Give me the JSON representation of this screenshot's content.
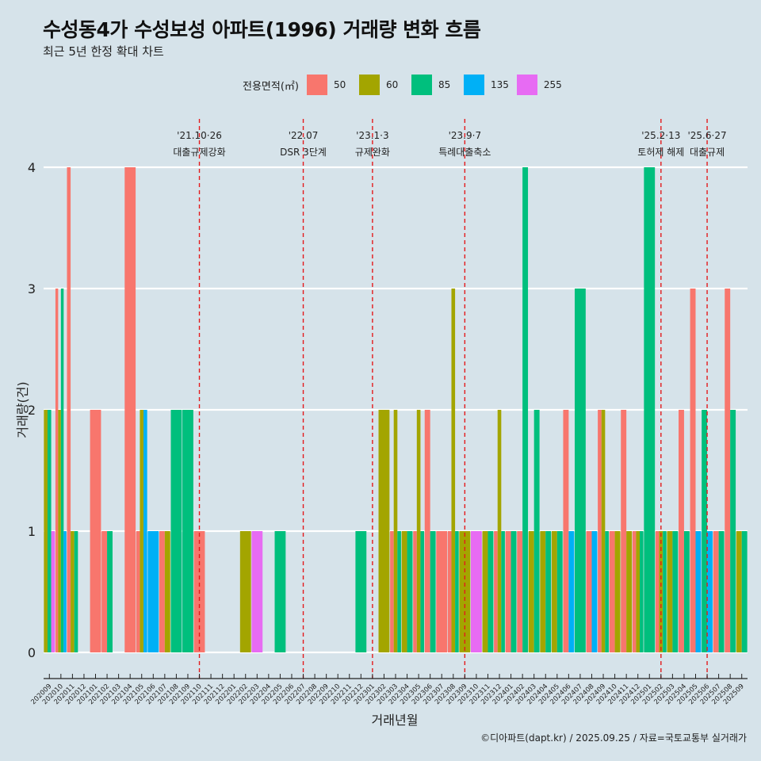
{
  "title": "수성동4가 수성보성 아파트(1996) 거래량 변화 흐름",
  "subtitle": "최근 5년 한정 확대 차트",
  "legend_title": "전용면적(㎡)",
  "caption": "©디아파트(dapt.kr) / 2025.09.25 / 자료=국토교통부 실거래가",
  "chart_data": {
    "type": "bar",
    "title": "수성동4가 수성보성 아파트(1996) 거래량 변화 흐름",
    "xlabel": "거래년월",
    "ylabel": "거래량(건)",
    "ylim": [
      0,
      4
    ],
    "yticks": [
      0,
      1,
      2,
      3,
      4
    ],
    "grid": true,
    "legend_position": "top",
    "categories": [
      "202009",
      "202010",
      "202011",
      "202012",
      "202101",
      "202102",
      "202103",
      "202104",
      "202105",
      "202106",
      "202107",
      "202108",
      "202109",
      "202110",
      "202111",
      "202112",
      "202201",
      "202202",
      "202203",
      "202204",
      "202205",
      "202206",
      "202207",
      "202208",
      "202209",
      "202210",
      "202211",
      "202212",
      "202301",
      "202302",
      "202303",
      "202304",
      "202305",
      "202306",
      "202307",
      "202308",
      "202309",
      "202310",
      "202311",
      "202312",
      "202401",
      "202402",
      "202403",
      "202404",
      "202405",
      "202406",
      "202407",
      "202408",
      "202409",
      "202410",
      "202411",
      "202412",
      "202501",
      "202502",
      "202503",
      "202504",
      "202505",
      "202506",
      "202507",
      "202508",
      "202509"
    ],
    "series": [
      {
        "name": "50",
        "color": "#f8766d",
        "values": [
          0,
          3,
          4,
          0,
          2,
          1,
          0,
          4,
          1,
          0,
          1,
          0,
          0,
          1,
          0,
          0,
          0,
          0,
          0,
          0,
          0,
          0,
          0,
          0,
          0,
          0,
          0,
          0,
          0,
          0,
          1,
          0,
          1,
          2,
          1,
          1,
          0,
          0,
          0,
          1,
          1,
          1,
          0,
          0,
          0,
          2,
          0,
          1,
          2,
          1,
          2,
          1,
          0,
          1,
          0,
          2,
          3,
          0,
          1,
          3,
          0
        ]
      },
      {
        "name": "60",
        "color": "#a3a500",
        "values": [
          2,
          2,
          1,
          0,
          0,
          0,
          0,
          0,
          2,
          0,
          1,
          0,
          0,
          0,
          0,
          0,
          0,
          1,
          0,
          0,
          0,
          0,
          0,
          0,
          0,
          0,
          0,
          0,
          0,
          2,
          2,
          1,
          2,
          0,
          0,
          3,
          1,
          0,
          1,
          2,
          0,
          0,
          1,
          1,
          1,
          0,
          0,
          0,
          2,
          1,
          1,
          1,
          0,
          1,
          1,
          0,
          0,
          0,
          0,
          0,
          1
        ]
      },
      {
        "name": "85",
        "color": "#00bf7d",
        "values": [
          2,
          3,
          1,
          0,
          0,
          1,
          0,
          0,
          0,
          0,
          0,
          2,
          2,
          0,
          0,
          0,
          0,
          0,
          0,
          0,
          1,
          0,
          0,
          0,
          0,
          0,
          0,
          1,
          0,
          0,
          1,
          1,
          1,
          1,
          0,
          1,
          0,
          0,
          1,
          1,
          1,
          4,
          2,
          1,
          1,
          0,
          3,
          0,
          1,
          0,
          0,
          1,
          4,
          1,
          1,
          1,
          0,
          2,
          1,
          2,
          1
        ]
      },
      {
        "name": "135",
        "color": "#00b0f6",
        "values": [
          0,
          1,
          0,
          0,
          0,
          0,
          0,
          0,
          2,
          1,
          0,
          0,
          0,
          0,
          0,
          0,
          0,
          0,
          0,
          0,
          0,
          0,
          0,
          0,
          0,
          0,
          0,
          0,
          0,
          0,
          0,
          0,
          0,
          0,
          0,
          0,
          0,
          0,
          0,
          0,
          0,
          0,
          0,
          0,
          0,
          1,
          0,
          1,
          0,
          0,
          0,
          0,
          0,
          0,
          0,
          0,
          1,
          1,
          0,
          0,
          0
        ]
      },
      {
        "name": "255",
        "color": "#e76bf3",
        "values": [
          1,
          0,
          0,
          0,
          0,
          0,
          0,
          0,
          0,
          0,
          0,
          0,
          0,
          0,
          0,
          0,
          0,
          0,
          1,
          0,
          0,
          0,
          0,
          0,
          0,
          0,
          0,
          0,
          0,
          0,
          0,
          0,
          0,
          0,
          0,
          0,
          0,
          1,
          0,
          0,
          0,
          0,
          0,
          0,
          0,
          0,
          0,
          0,
          0,
          0,
          0,
          0,
          0,
          0,
          0,
          0,
          0,
          0,
          0,
          0,
          0
        ]
      }
    ],
    "annotations": [
      {
        "date": "'21.10·26",
        "label": "대출규제강화",
        "at": "202110"
      },
      {
        "date": "'22.07",
        "label": "DSR 3단계",
        "at": "202207"
      },
      {
        "date": "'23.1·3",
        "label": "규제완화",
        "at": "202301"
      },
      {
        "date": "'23.9·7",
        "label": "특례대출축소",
        "at": "202309"
      },
      {
        "date": "'25.2·13",
        "label": "토허제 해제",
        "at": "202502"
      },
      {
        "date": "'25.6·27",
        "label": "대출규제",
        "at": "202506"
      }
    ]
  }
}
